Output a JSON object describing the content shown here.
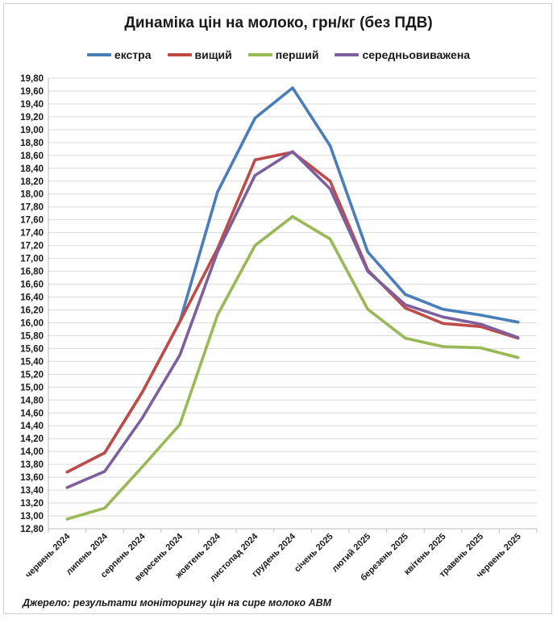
{
  "chart_data": {
    "type": "line",
    "title": "Динаміка цін на молоко, грн/кг (без ПДВ)",
    "categories": [
      "червень 2024",
      "липень 2024",
      "серпень 2024",
      "вересень 2024",
      "жовтень 2024",
      "листопад 2024",
      "грудень 2024",
      "січень 2025",
      "лютий 2025",
      "березень 2025",
      "квітень 2025",
      "травень 2025",
      "червень 2025"
    ],
    "ylim": [
      12.8,
      19.8
    ],
    "yticks": [
      "12,80",
      "13,00",
      "13,20",
      "13,40",
      "13,60",
      "13,80",
      "14,00",
      "14,20",
      "14,40",
      "14,60",
      "14,80",
      "15,00",
      "15,20",
      "15,40",
      "15,60",
      "15,80",
      "16,00",
      "16,20",
      "16,40",
      "16,60",
      "16,80",
      "17,00",
      "17,20",
      "17,40",
      "17,60",
      "17,80",
      "18,00",
      "18,20",
      "18,40",
      "18,60",
      "18,80",
      "19,00",
      "19,20",
      "19,40",
      "19,60",
      "19,80"
    ],
    "grid": true,
    "legend_position": "top",
    "series": [
      {
        "name": "екстра",
        "color": "#4a7ebb",
        "values": [
          13.68,
          13.98,
          14.92,
          16.02,
          18.03,
          19.18,
          19.65,
          18.75,
          17.1,
          16.44,
          16.21,
          16.12,
          16.01
        ]
      },
      {
        "name": "вищий",
        "color": "#be4b48",
        "values": [
          13.68,
          13.98,
          14.92,
          16.02,
          17.15,
          18.53,
          18.65,
          18.2,
          16.82,
          16.23,
          15.99,
          15.94,
          15.76
        ]
      },
      {
        "name": "перший",
        "color": "#98b954",
        "values": [
          12.95,
          13.12,
          13.76,
          14.42,
          16.12,
          17.2,
          17.65,
          17.3,
          16.21,
          15.76,
          15.63,
          15.61,
          15.46
        ]
      },
      {
        "name": "середньовиважена",
        "color": "#7d5fa0",
        "values": [
          13.44,
          13.69,
          14.52,
          15.5,
          17.1,
          18.29,
          18.66,
          18.08,
          16.8,
          16.28,
          16.09,
          15.98,
          15.77
        ]
      }
    ],
    "source": "Джерело: результати моніторингу цін на сире молоко АВМ"
  }
}
